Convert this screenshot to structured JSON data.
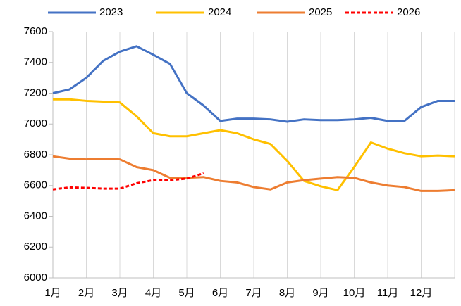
{
  "chart_data": {
    "type": "line",
    "x": [
      0,
      0.5,
      1,
      1.5,
      2,
      2.5,
      3,
      3.5,
      4,
      4.5,
      5,
      5.5,
      6,
      6.5,
      7,
      7.5,
      8,
      8.5,
      9,
      9.5,
      10,
      10.5,
      11,
      11.5,
      12
    ],
    "series": [
      {
        "name": "2023",
        "color": "#4472c4",
        "dashed": false,
        "values": [
          7200,
          7225,
          7300,
          7410,
          7470,
          7505,
          7450,
          7390,
          7200,
          7120,
          7020,
          7035,
          7035,
          7030,
          7015,
          7030,
          7025,
          7025,
          7030,
          7040,
          7020,
          7020,
          7110,
          7150,
          7150
        ]
      },
      {
        "name": "2024",
        "color": "#ffc000",
        "dashed": false,
        "values": [
          7160,
          7160,
          7150,
          7145,
          7140,
          7050,
          6940,
          6920,
          6920,
          6940,
          6960,
          6940,
          6900,
          6870,
          6760,
          6630,
          6595,
          6570,
          6720,
          6880,
          6840,
          6810,
          6790,
          6795,
          6790
        ]
      },
      {
        "name": "2025",
        "color": "#ed7d31",
        "dashed": false,
        "values": [
          6790,
          6775,
          6770,
          6775,
          6770,
          6720,
          6700,
          6650,
          6650,
          6655,
          6630,
          6620,
          6590,
          6575,
          6620,
          6635,
          6645,
          6655,
          6650,
          6620,
          6600,
          6590,
          6565,
          6565,
          6570
        ]
      },
      {
        "name": "2026",
        "color": "#ff0000",
        "dashed": true,
        "values": [
          6575,
          6588,
          6585,
          6580,
          6580,
          6615,
          6635,
          6635,
          6645,
          6680,
          null,
          null,
          null,
          null,
          null,
          null,
          null,
          null,
          null,
          null,
          null,
          null,
          null,
          null,
          null
        ]
      }
    ],
    "xlim": [
      0,
      12
    ],
    "xticks": [
      {
        "value": 0,
        "label": "1月"
      },
      {
        "value": 1,
        "label": "2月"
      },
      {
        "value": 2,
        "label": "3月"
      },
      {
        "value": 3,
        "label": "4月"
      },
      {
        "value": 4,
        "label": "5月"
      },
      {
        "value": 5,
        "label": "6月"
      },
      {
        "value": 6,
        "label": "7月"
      },
      {
        "value": 7,
        "label": "8月"
      },
      {
        "value": 8,
        "label": "9月"
      },
      {
        "value": 9,
        "label": "10月"
      },
      {
        "value": 10,
        "label": "11月"
      },
      {
        "value": 11,
        "label": "12月"
      }
    ],
    "ylim": [
      6000,
      7600
    ],
    "yticks": [
      6000,
      6200,
      6400,
      6600,
      6800,
      7000,
      7200,
      7400,
      7600
    ],
    "xgrid": true,
    "legend": "top"
  }
}
